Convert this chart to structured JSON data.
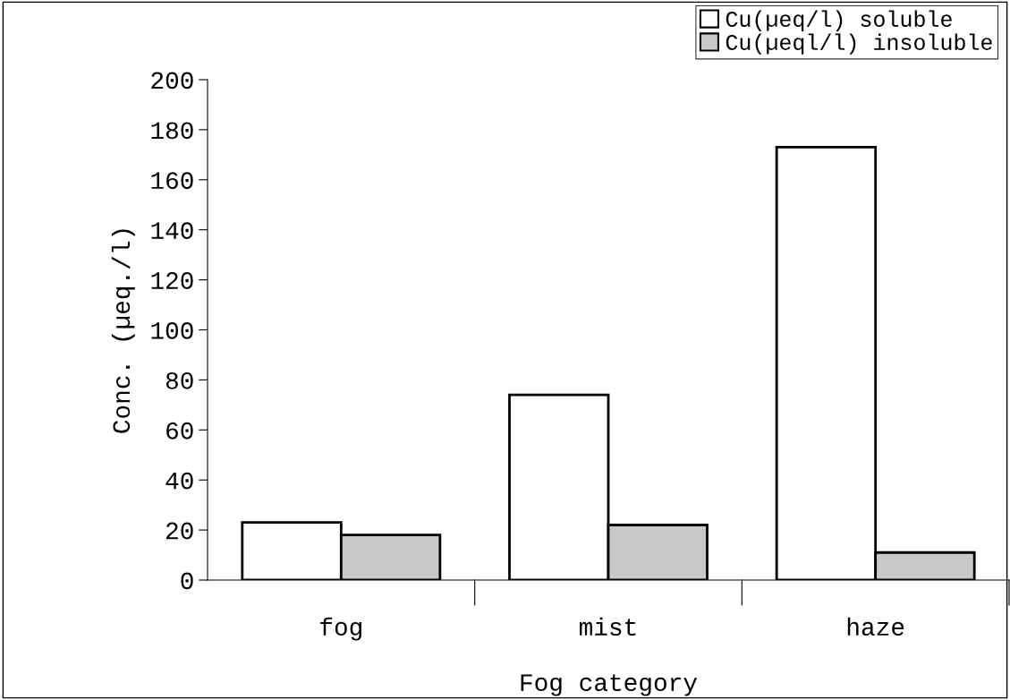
{
  "chart_data": {
    "type": "bar",
    "xlabel": "Fog category",
    "ylabel": "Conc. (µeq./l)",
    "categories": [
      "fog",
      "mist",
      "haze"
    ],
    "series": [
      {
        "name": "Cu(µeq/l) soluble",
        "color": "#ffffff",
        "values": [
          23,
          74,
          173
        ]
      },
      {
        "name": "Cu(µeql/l) insoluble",
        "color": "#c8c8c8",
        "values": [
          18,
          22,
          11
        ]
      }
    ],
    "ylim": [
      0,
      200
    ],
    "yticks": [
      0,
      20,
      40,
      60,
      80,
      100,
      120,
      140,
      160,
      180,
      200
    ],
    "grid": false,
    "legend": "top right"
  }
}
